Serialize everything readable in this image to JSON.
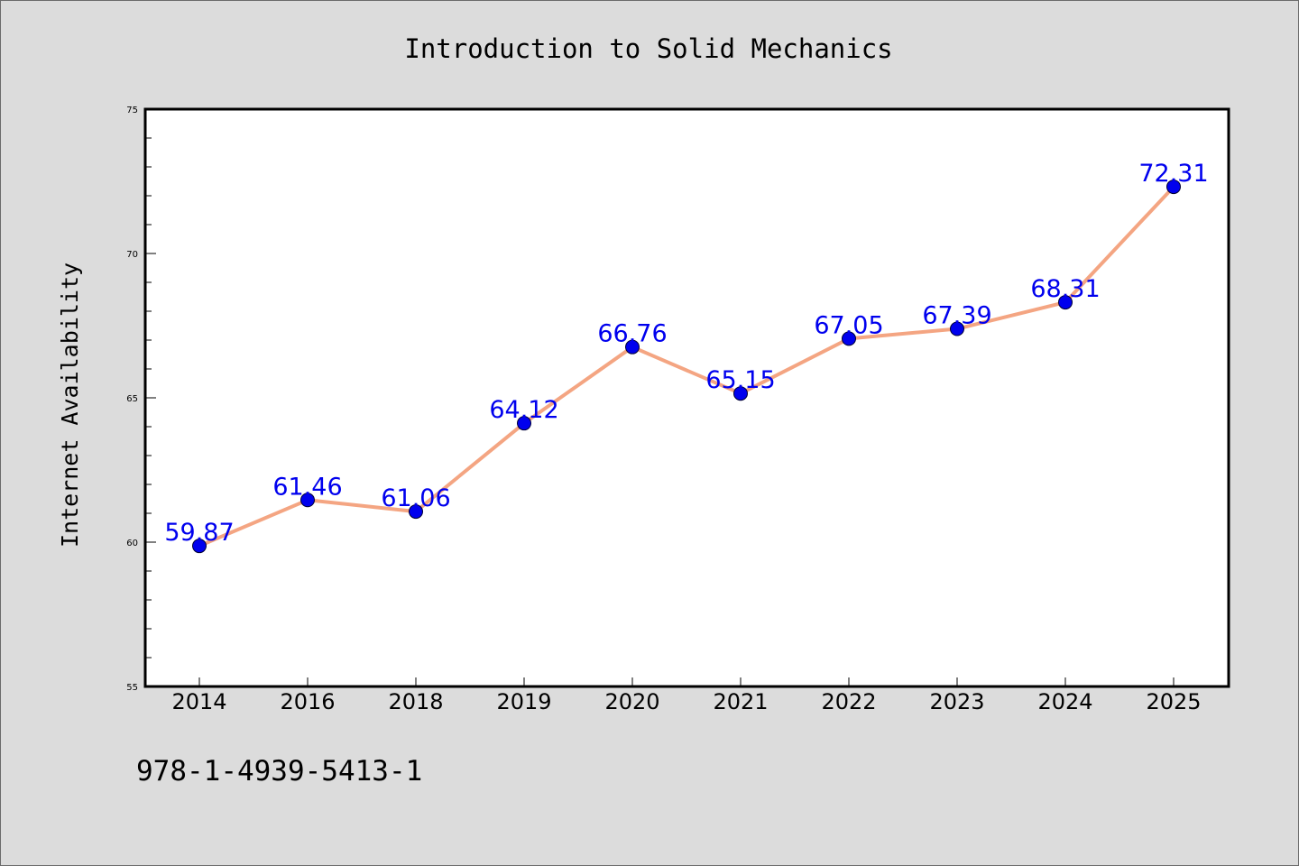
{
  "chart_data": {
    "type": "line",
    "title": "Introduction to Solid Mechanics",
    "xlabel": "",
    "ylabel": "Internet Availability",
    "categories": [
      "2014",
      "2016",
      "2018",
      "2019",
      "2020",
      "2021",
      "2022",
      "2023",
      "2024",
      "2025"
    ],
    "series": [
      {
        "values": [
          59.87,
          61.46,
          61.06,
          64.12,
          66.76,
          65.15,
          67.05,
          67.39,
          68.31,
          72.31
        ],
        "data_labels": [
          "59.87",
          "61.46",
          "61.06",
          "64.12",
          "66.76",
          "65.15",
          "67.05",
          "67.39",
          "68.31",
          "72.31"
        ]
      }
    ],
    "ylim": [
      55,
      75
    ],
    "y_major_ticks": [
      55,
      60,
      65,
      70,
      75
    ],
    "y_tick_labels": [
      "55",
      "60",
      "65",
      "70",
      "75"
    ],
    "y_minor_step": 1,
    "grid": false,
    "legend": "none",
    "colors": {
      "background": "#dcdcdc",
      "plot_background": "#ffffff",
      "line": "#f4a582",
      "marker": "#0000ee",
      "data_label": "#0000ee"
    }
  },
  "footer": {
    "isbn": "978-1-4939-5413-1"
  }
}
